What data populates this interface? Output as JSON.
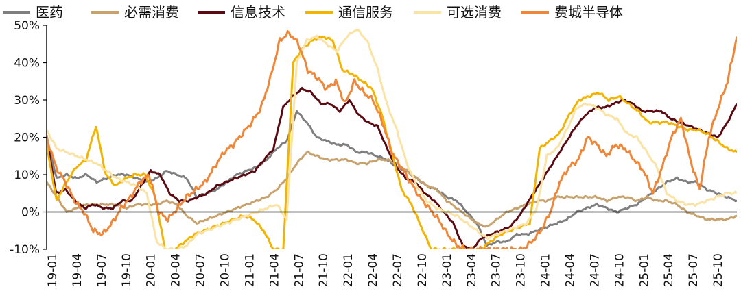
{
  "chart_data": {
    "type": "line",
    "title": "",
    "xlabel": "",
    "ylabel": "",
    "ylim": [
      -10,
      50
    ],
    "y_ticks": [
      -10,
      0,
      10,
      20,
      30,
      40,
      50
    ],
    "y_tick_labels": [
      "-10%",
      "0%",
      "10%",
      "20%",
      "30%",
      "40%",
      "50%"
    ],
    "x_tick_labels": [
      "19-01",
      "19-04",
      "19-07",
      "19-10",
      "20-01",
      "20-04",
      "20-07",
      "20-10",
      "21-01",
      "21-04",
      "21-07",
      "21-10",
      "22-01",
      "22-04",
      "22-07",
      "22-10",
      "23-01",
      "23-04",
      "23-07",
      "23-10",
      "24-01",
      "24-04",
      "24-07",
      "24-10",
      "25-01",
      "25-04",
      "25-07",
      "25-10"
    ],
    "x_tick_rotation": 90,
    "grid": false,
    "legend_position": "top",
    "series": [
      {
        "name": "医药",
        "color": "#7f7f7f",
        "values": [
          20,
          9,
          10,
          9,
          10,
          8,
          9,
          10,
          10,
          9,
          8,
          9,
          11,
          10,
          9,
          4,
          5,
          6,
          8,
          10,
          11,
          12,
          14,
          17,
          19,
          27,
          24,
          20,
          19,
          18,
          18,
          16,
          16,
          15,
          14,
          12,
          11,
          9,
          7,
          6,
          4,
          3,
          0,
          -3,
          -9,
          -8,
          -8,
          -6,
          -6,
          -5,
          -4,
          -3,
          -2,
          0,
          1,
          2,
          1,
          0,
          1,
          2,
          4,
          6,
          8,
          9,
          8,
          8,
          6,
          5,
          4,
          3
        ]
      },
      {
        "name": "必需消费",
        "color": "#c8a26d",
        "values": [
          8,
          4,
          0,
          1,
          2,
          2,
          2,
          2,
          1,
          2,
          2,
          2,
          3,
          2,
          -1,
          -3,
          -2,
          -1,
          0,
          1,
          2,
          3,
          4,
          6,
          9,
          13,
          16,
          15,
          14,
          14,
          14,
          13,
          13,
          14,
          14,
          13,
          11,
          9,
          7,
          6,
          3,
          1,
          -1,
          -3,
          -4,
          -2,
          0,
          1,
          2,
          3,
          3,
          4,
          4,
          4,
          4,
          4,
          3,
          4,
          4,
          3,
          4,
          3,
          3,
          2,
          0,
          -1,
          -2,
          -2,
          -2,
          -1
        ]
      },
      {
        "name": "信息技术",
        "color": "#5b0a12",
        "values": [
          20,
          5,
          6,
          3,
          1,
          2,
          1,
          1,
          3,
          3,
          7,
          11,
          10,
          5,
          3,
          3,
          4,
          5,
          7,
          8,
          9,
          10,
          11,
          14,
          17,
          28,
          31,
          33,
          32,
          29,
          29,
          27,
          30,
          26,
          24,
          23,
          17,
          12,
          9,
          8,
          5,
          3,
          0,
          -3,
          -9,
          -10,
          -7,
          -6,
          -5,
          -4,
          -1,
          3,
          7,
          11,
          15,
          19,
          23,
          26,
          28,
          28,
          29,
          30,
          29,
          27,
          27,
          27,
          25,
          24,
          23,
          22,
          21,
          20,
          24,
          29
        ]
      },
      {
        "name": "通信服务",
        "color": "#f2b400",
        "values": [
          18,
          3,
          8,
          12,
          14,
          23,
          10,
          7,
          9,
          10,
          10,
          4,
          -10,
          -10,
          -8,
          -6,
          -5,
          -4,
          -3,
          -2,
          -1,
          -2,
          -5,
          -10,
          -10,
          40,
          44,
          46,
          47,
          46,
          38,
          37,
          35,
          33,
          26,
          16,
          6,
          2,
          -4,
          -10,
          -10,
          -10,
          -10,
          -10,
          -10,
          -8,
          -6,
          -5,
          -4,
          -3,
          17,
          19,
          21,
          26,
          30,
          31,
          32,
          30,
          31,
          29,
          27,
          24,
          24,
          24,
          23,
          22,
          22,
          21,
          19,
          17,
          16
        ]
      },
      {
        "name": "可选消费",
        "color": "#fae3a5",
        "values": [
          22,
          17,
          16,
          15,
          14,
          13,
          11,
          9,
          8,
          7,
          5,
          -8,
          -10,
          -10,
          -9,
          -6,
          -5,
          -4,
          -3,
          -2,
          -1,
          0,
          1,
          2,
          -2,
          40,
          46,
          47,
          45,
          43,
          47,
          49,
          46,
          39,
          29,
          22,
          13,
          7,
          3,
          1,
          0,
          -1,
          -3,
          -5,
          -7,
          -6,
          -5,
          -4,
          -3,
          1,
          15,
          17,
          22,
          28,
          29,
          28,
          26,
          25,
          21,
          20,
          16,
          12,
          5,
          3,
          2,
          2,
          3,
          4,
          5,
          5
        ]
      },
      {
        "name": "费城半导体",
        "color": "#ef8638",
        "values": [
          20,
          12,
          8,
          3,
          0,
          -5,
          -6,
          -3,
          1,
          4,
          8,
          10,
          0,
          -2,
          1,
          4,
          6,
          8,
          12,
          16,
          18,
          21,
          24,
          28,
          36,
          46,
          48,
          45,
          38,
          36,
          33,
          35,
          29,
          35,
          32,
          30,
          24,
          16,
          12,
          8,
          4,
          1,
          -2,
          -6,
          -9,
          -10,
          -10,
          -10,
          -10,
          -10,
          -10,
          -10,
          -8,
          -5,
          0,
          8,
          12,
          14,
          20,
          18,
          15,
          18,
          17,
          14,
          11,
          5,
          12,
          20,
          25,
          14,
          6,
          20,
          28,
          35,
          47
        ]
      }
    ]
  }
}
